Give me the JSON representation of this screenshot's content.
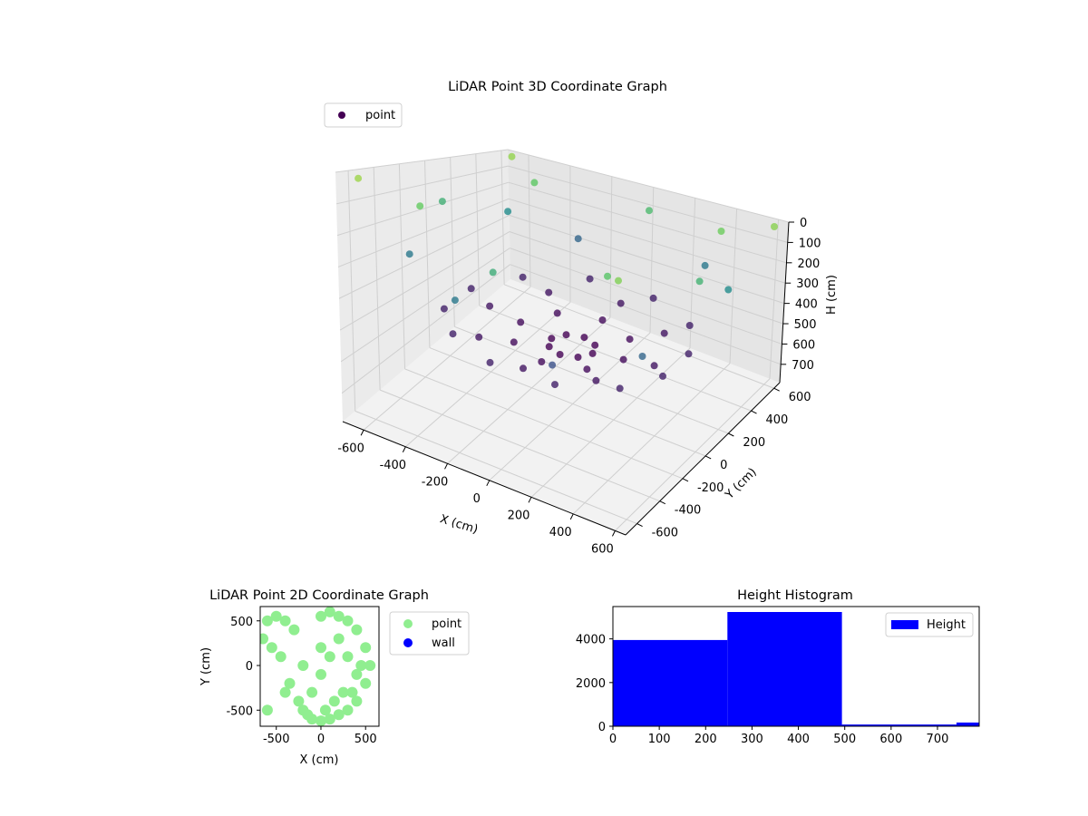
{
  "chart_data": [
    {
      "type": "scatter3d",
      "title": "LiDAR Point 3D Coordinate Graph",
      "xlabel": "X (cm)",
      "ylabel": "Y (cm)",
      "zlabel": "H (cm)",
      "xlim": [
        -700,
        650
      ],
      "ylim": [
        -700,
        650
      ],
      "zlim": [
        0,
        790
      ],
      "z_inverted": true,
      "x_ticks": [
        -600,
        -400,
        -200,
        0,
        200,
        400,
        600
      ],
      "y_ticks": [
        -600,
        -400,
        -200,
        0,
        200,
        400,
        600
      ],
      "z_ticks": [
        0,
        100,
        200,
        300,
        400,
        500,
        600,
        700
      ],
      "legend": {
        "placement": "top-left",
        "entries": [
          "point"
        ]
      },
      "colormap": "viridis",
      "grid": true,
      "series": [
        {
          "name": "point",
          "color_by": "height",
          "points": [
            [
              -100,
              0,
              560
            ],
            [
              0,
              100,
              560
            ],
            [
              100,
              0,
              560
            ],
            [
              0,
              -100,
              560
            ],
            [
              -70,
              70,
              560
            ],
            [
              70,
              70,
              560
            ],
            [
              70,
              -70,
              560
            ],
            [
              -70,
              -70,
              560
            ],
            [
              -250,
              0,
              540
            ],
            [
              -177,
              177,
              540
            ],
            [
              0,
              250,
              540
            ],
            [
              177,
              177,
              540
            ],
            [
              250,
              0,
              540
            ],
            [
              177,
              -177,
              540
            ],
            [
              0,
              -250,
              540
            ],
            [
              -177,
              -177,
              540
            ],
            [
              -400,
              0,
              520
            ],
            [
              -283,
              283,
              520
            ],
            [
              0,
              400,
              520
            ],
            [
              283,
              283,
              520
            ],
            [
              400,
              0,
              520
            ],
            [
              283,
              -283,
              520
            ],
            [
              0,
              -400,
              520
            ],
            [
              -283,
              -283,
              520
            ],
            [
              -520,
              50,
              500
            ],
            [
              -420,
              300,
              500
            ],
            [
              -200,
              480,
              500
            ],
            [
              100,
              500,
              500
            ],
            [
              350,
              380,
              500
            ],
            [
              480,
              150,
              500
            ],
            [
              500,
              -100,
              500
            ],
            [
              420,
              -320,
              500
            ],
            [
              200,
              -480,
              500
            ],
            [
              -100,
              -500,
              500
            ],
            [
              -350,
              -380,
              500
            ],
            [
              -500,
              -200,
              500
            ],
            [
              -600,
              -300,
              300
            ],
            [
              -550,
              400,
              250
            ],
            [
              -300,
              550,
              350
            ],
            [
              300,
              580,
              300
            ],
            [
              580,
              300,
              250
            ],
            [
              550,
              -350,
              350
            ],
            [
              -200,
              -600,
              300
            ],
            [
              250,
              -580,
              400
            ],
            [
              -620,
              0,
              150
            ],
            [
              0,
              620,
              120
            ],
            [
              620,
              0,
              140
            ],
            [
              0,
              -620,
              160
            ],
            [
              -450,
              450,
              80
            ],
            [
              450,
              450,
              60
            ],
            [
              450,
              -450,
              90
            ],
            [
              -450,
              -450,
              70
            ],
            [
              -650,
              600,
              20
            ],
            [
              600,
              620,
              30
            ],
            [
              620,
              -640,
              40
            ],
            [
              -640,
              -620,
              10
            ]
          ]
        }
      ]
    },
    {
      "type": "scatter",
      "title": "LiDAR Point 2D Coordinate Graph",
      "xlabel": "X (cm)",
      "ylabel": "Y (cm)",
      "xlim": [
        -680,
        650
      ],
      "ylim": [
        -680,
        660
      ],
      "x_ticks": [
        -500,
        0,
        500
      ],
      "y_ticks": [
        -500,
        0,
        500
      ],
      "legend": {
        "placement": "outside-right",
        "entries": [
          "point",
          "wall"
        ]
      },
      "colors": {
        "point": "#90ee90",
        "wall": "#0000ff"
      },
      "series": [
        {
          "name": "point",
          "x": [
            0,
            100,
            200,
            300,
            400,
            500,
            550,
            500,
            400,
            300,
            200,
            100,
            0,
            -100,
            -200,
            -100,
            0,
            100,
            200,
            300,
            400,
            -300,
            -400,
            -500,
            -600,
            -650,
            -550,
            -450,
            -350,
            -250,
            -150,
            50,
            150,
            250,
            350,
            450,
            0,
            -200,
            -400,
            -600
          ],
          "y": [
            550,
            600,
            550,
            500,
            400,
            200,
            0,
            -200,
            -400,
            -500,
            -550,
            -600,
            -620,
            -600,
            -500,
            -300,
            -100,
            100,
            300,
            100,
            -100,
            400,
            500,
            550,
            500,
            300,
            200,
            100,
            -200,
            -400,
            -550,
            -500,
            -400,
            -300,
            -300,
            0,
            200,
            0,
            -300,
            -500
          ]
        },
        {
          "name": "wall",
          "x": [],
          "y": []
        }
      ]
    },
    {
      "type": "bar",
      "title": "Height Histogram",
      "xlabel": "",
      "ylabel": "",
      "xlim": [
        0,
        790
      ],
      "ylim": [
        0,
        5480
      ],
      "x_ticks": [
        0,
        100,
        200,
        300,
        400,
        500,
        600,
        700
      ],
      "y_ticks": [
        0,
        2000,
        4000
      ],
      "legend": {
        "placement": "top-right",
        "entries": [
          "Height"
        ]
      },
      "colors": {
        "Height": "#0000ff"
      },
      "bin_edges": [
        0,
        247,
        494,
        741,
        790
      ],
      "series": [
        {
          "name": "Height",
          "values": [
            3950,
            5230,
            80,
            170
          ]
        }
      ]
    }
  ]
}
